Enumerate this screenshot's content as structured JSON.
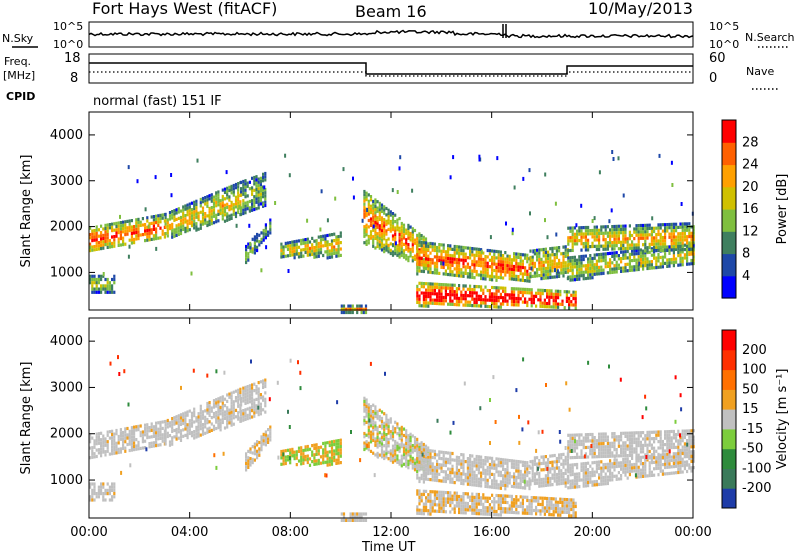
{
  "header": {
    "station": "Fort Hays West (fitACF)",
    "beam": "Beam 16",
    "date": "10/May/2013"
  },
  "top_panels": {
    "nsky_label": "N.Sky",
    "nsky_ticks": [
      "10^5",
      "10^0"
    ],
    "nsearch_label": "N.Search",
    "nsearch_ticks": [
      "10^5",
      "10^0"
    ],
    "freq_label": "Freq.",
    "freq_unit": "[MHz]",
    "freq_ticks": [
      "18",
      "8"
    ],
    "nave_label": "Nave",
    "nave_ticks": [
      "60",
      "0"
    ],
    "cpid_label": "CPID",
    "cpid_text": "normal (fast) 151 IF"
  },
  "chart_data": [
    {
      "type": "heatmap",
      "name": "power",
      "ylabel": "Slant Range [km]",
      "yticks": [
        "4000",
        "3000",
        "2000",
        "1000"
      ],
      "ylim": [
        180,
        4500
      ],
      "xlim": [
        0,
        24
      ],
      "colorbar": {
        "label": "Power [dB]",
        "ticks": [
          "28",
          "24",
          "20",
          "16",
          "12",
          "8",
          "4"
        ],
        "colors": [
          "#0000ff",
          "#1e48a8",
          "#3f7f5f",
          "#7fbf3f",
          "#d0c000",
          "#ffa000",
          "#ff6000",
          "#ff0000"
        ]
      }
    },
    {
      "type": "heatmap",
      "name": "velocity",
      "ylabel": "Slant Range [km]",
      "yticks": [
        "4000",
        "3000",
        "2000",
        "1000"
      ],
      "ylim": [
        180,
        4500
      ],
      "xlim": [
        0,
        24
      ],
      "colorbar": {
        "label": "Velocity [m s⁻¹]",
        "ticks": [
          "200",
          "100",
          "50",
          "15",
          "-15",
          "-50",
          "-100",
          "-200"
        ],
        "colors": [
          "#1e3ca8",
          "#3a7a5a",
          "#2e8b3c",
          "#7ccd3c",
          "#c0c0c0",
          "#f0a020",
          "#ff7000",
          "#ff3000",
          "#ff0000"
        ]
      }
    }
  ],
  "xaxis": {
    "ticks": [
      "00:00",
      "04:00",
      "08:00",
      "12:00",
      "16:00",
      "20:00",
      "00:00"
    ],
    "label": "Time UT"
  },
  "colors": {
    "frame": "#000000",
    "background": "#ffffff"
  }
}
